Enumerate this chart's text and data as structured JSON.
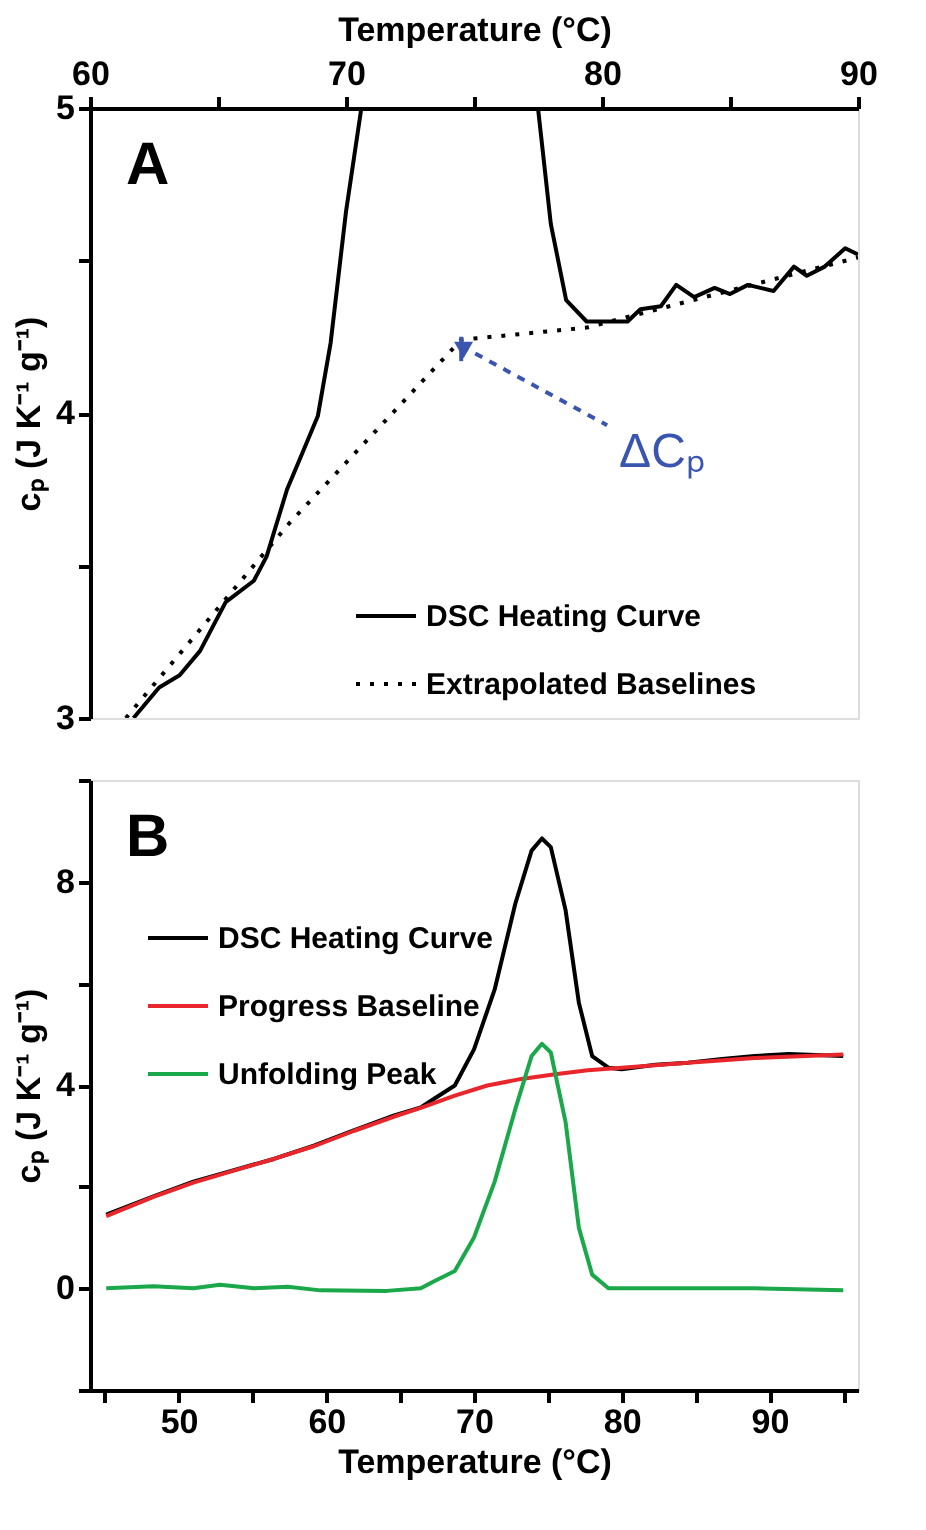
{
  "chart_data": [
    {
      "type": "line",
      "title": "A",
      "xlabel": "Temperature (°C)",
      "ylabel": "cₚ (J K⁻¹ g⁻¹)",
      "xlim": [
        60,
        90
      ],
      "xticks": [
        60,
        {
          "value": 65,
          "label": null
        },
        70,
        {
          "value": 75,
          "label": null
        },
        80,
        {
          "value": 85,
          "label": null
        },
        90
      ],
      "ylim": [
        3,
        5
      ],
      "yticks": [
        3,
        {
          "value": 3.5,
          "label": null
        },
        4,
        {
          "value": 4.5,
          "label": null
        },
        5
      ],
      "legend": "bottom right",
      "series": [
        {
          "name": "DSC Heating Curve",
          "color": "#000000",
          "line_style": "solid",
          "x": [
            61.7,
            62.7,
            63.5,
            64.3,
            65.3,
            66.4,
            66.9,
            67.7,
            68.3,
            68.9,
            69.4,
            70.0,
            70.6,
            74.0,
            77.5,
            78.0,
            78.6,
            79.4,
            80.2,
            81.0,
            81.5,
            82.3,
            82.9,
            83.6,
            84.4,
            85.0,
            85.7,
            86.7,
            87.5,
            88.0,
            88.7,
            89.5,
            90.0
          ],
          "values": [
            3.0,
            3.1,
            3.14,
            3.22,
            3.38,
            3.45,
            3.53,
            3.75,
            3.87,
            3.99,
            4.23,
            4.66,
            5.0,
            null,
            5.0,
            4.62,
            4.37,
            4.3,
            4.3,
            4.3,
            4.34,
            4.35,
            4.42,
            4.38,
            4.41,
            4.39,
            4.42,
            4.4,
            4.48,
            4.45,
            4.48,
            4.54,
            4.52
          ]
        },
        {
          "name": "Extrapolated Baselines",
          "color": "#000000",
          "line_style": "dotted",
          "x": [
            61.4,
            67.8,
            74.5,
            79.4,
            90.0
          ],
          "values": [
            3.0,
            3.64,
            4.24,
            4.28,
            4.51
          ]
        }
      ],
      "annotations": [
        {
          "text": "ΔCₚ",
          "x": 74.5,
          "y": 4.22
        }
      ]
    },
    {
      "type": "line",
      "title": "B",
      "xlabel": "Temperature (°C)",
      "ylabel": "cₚ (J K⁻¹ g⁻¹)",
      "xlim": [
        44,
        96
      ],
      "xticks": [
        {
          "value": 45,
          "label": null
        },
        50,
        {
          "value": 55,
          "label": null
        },
        60,
        {
          "value": 65,
          "label": null
        },
        70,
        {
          "value": 75,
          "label": null
        },
        80,
        {
          "value": 85,
          "label": null
        },
        90,
        {
          "value": 95,
          "label": null
        }
      ],
      "ylim": [
        -2,
        10
      ],
      "yticks": [
        {
          "value": -2,
          "label": null
        },
        0,
        {
          "value": 2,
          "label": null
        },
        4,
        {
          "value": 6,
          "label": null
        },
        8,
        {
          "value": 10,
          "label": null
        }
      ],
      "legend": "top left",
      "series": [
        {
          "name": "DSC Heating Curve",
          "color": "#000000",
          "line_style": "solid",
          "x": [
            45.1,
            48.3,
            51.0,
            53.8,
            56.5,
            59.2,
            61.9,
            64.6,
            66.4,
            67.3,
            68.7,
            70.0,
            71.4,
            72.8,
            73.9,
            74.6,
            75.2,
            76.2,
            77.1,
            78.0,
            79.1,
            80.0,
            82.3,
            84.5,
            86.8,
            89.0,
            91.3,
            95.0
          ],
          "values": [
            1.45,
            1.81,
            2.1,
            2.33,
            2.55,
            2.81,
            3.11,
            3.4,
            3.56,
            3.73,
            3.99,
            4.7,
            5.88,
            7.57,
            8.61,
            8.85,
            8.68,
            7.44,
            5.62,
            4.57,
            4.34,
            4.31,
            4.4,
            4.44,
            4.51,
            4.57,
            4.61,
            4.57
          ]
        },
        {
          "name": "Progress Baseline",
          "color": "#e8262b",
          "line_style": "solid",
          "x": [
            45.1,
            48.3,
            51.0,
            53.8,
            56.5,
            59.2,
            61.9,
            64.6,
            66.4,
            68.7,
            70.9,
            73.2,
            75.5,
            77.7,
            80.0,
            84.5,
            89.0,
            95.0
          ],
          "values": [
            1.42,
            1.8,
            2.08,
            2.32,
            2.55,
            2.8,
            3.1,
            3.38,
            3.55,
            3.79,
            3.99,
            4.12,
            4.21,
            4.29,
            4.34,
            4.44,
            4.53,
            4.6
          ]
        },
        {
          "name": "Unfolding Peak",
          "color": "#1aa84a",
          "line_style": "solid",
          "x": [
            45.1,
            48.3,
            51.0,
            52.8,
            55.1,
            57.4,
            59.6,
            64.1,
            66.4,
            67.3,
            68.7,
            70.0,
            71.4,
            72.8,
            73.9,
            74.6,
            75.2,
            76.2,
            77.1,
            78.0,
            79.1,
            82.3,
            84.5,
            89.0,
            95.0
          ],
          "values": [
            0.0,
            0.04,
            0.0,
            0.07,
            0.0,
            0.03,
            -0.04,
            -0.05,
            0.0,
            0.14,
            0.34,
            1.0,
            2.1,
            3.53,
            4.57,
            4.81,
            4.64,
            3.27,
            1.19,
            0.27,
            0.0,
            0.0,
            0.0,
            0.0,
            -0.04
          ]
        }
      ]
    }
  ]
}
